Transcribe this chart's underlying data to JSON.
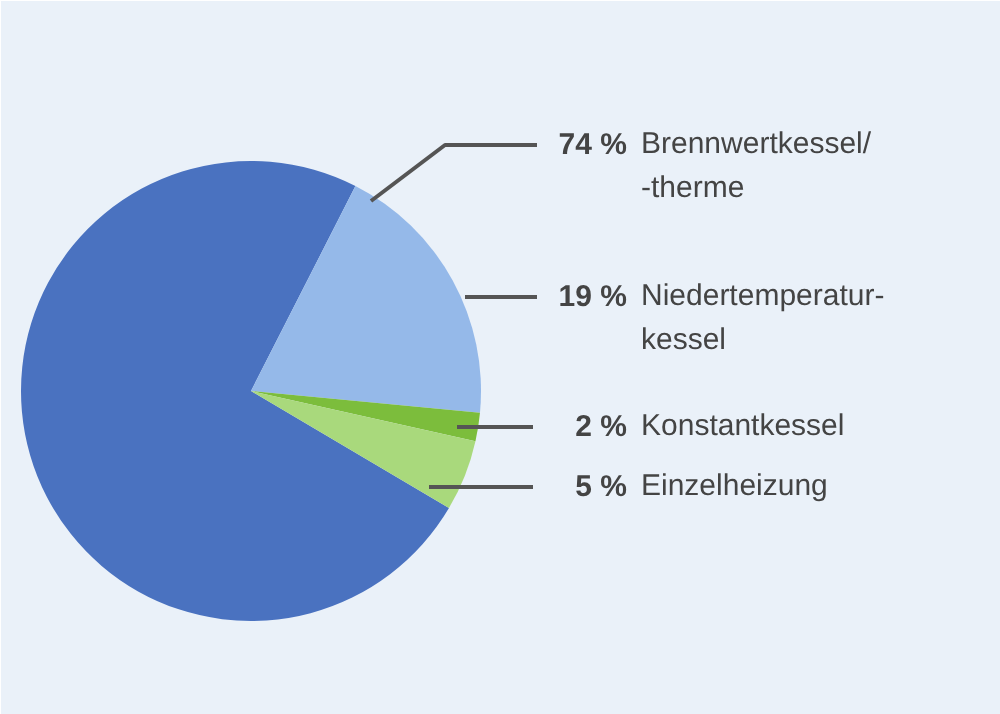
{
  "chart_data": {
    "type": "pie",
    "categories": [
      "Brennwertkessel/\n-therme",
      "Niedertemperatur-\nkessel",
      "Konstantkessel",
      "Einzelheizung"
    ],
    "values": [
      74,
      19,
      2,
      5
    ],
    "colors": [
      "#4a72c0",
      "#95b9e9",
      "#7cbd3c",
      "#a9d97c"
    ],
    "value_labels": [
      "74 %",
      "19 %",
      "2 %",
      "5 %"
    ]
  }
}
